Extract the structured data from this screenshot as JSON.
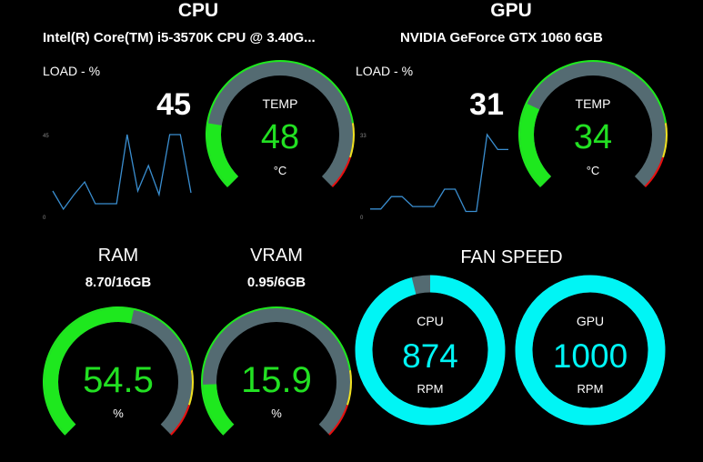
{
  "cpu": {
    "title": "CPU",
    "name": "Intel(R) Core(TM) i5-3570K CPU @ 3.40G...",
    "load_label": "LOAD - %",
    "load_value": "45",
    "axis_top": "45",
    "axis_bottom": "0",
    "load_history": [
      14,
      4,
      12,
      19,
      7,
      7,
      7,
      45,
      14,
      28,
      12,
      45,
      45,
      13
    ],
    "temp_label": "TEMP",
    "temp_value": "48",
    "temp_unit": "°C",
    "temp_fraction": 0.2
  },
  "gpu": {
    "title": "GPU",
    "name": "NVIDIA GeForce GTX 1060 6GB",
    "load_label": "LOAD - %",
    "load_value": "31",
    "axis_top": "33",
    "axis_bottom": "0",
    "load_history": [
      3,
      3,
      8,
      8,
      4,
      4,
      4,
      11,
      11,
      2,
      2,
      33,
      27,
      27
    ],
    "temp_label": "TEMP",
    "temp_value": "34",
    "temp_unit": "°C",
    "temp_fraction": 0.26
  },
  "ram": {
    "title": "RAM",
    "usage": "8.70/16GB",
    "value": "54.5",
    "unit": "%",
    "fraction": 0.545
  },
  "vram": {
    "title": "VRAM",
    "usage": "0.95/6GB",
    "value": "15.9",
    "unit": "%",
    "fraction": 0.159
  },
  "fan": {
    "title": "FAN SPEED",
    "cpu_label": "CPU",
    "cpu_value": "874",
    "cpu_unit": "RPM",
    "cpu_fraction": 0.96,
    "gpu_label": "GPU",
    "gpu_value": "1000",
    "gpu_unit": "RPM",
    "gpu_fraction": 1.0
  },
  "colors": {
    "gauge_fill": "#1ee81e",
    "gauge_track": "#546b72",
    "warn": "#f0e020",
    "danger": "#e81010",
    "fan_ring": "#00f5f5",
    "value_green": "#22e022",
    "value_cyan": "#00f5f5",
    "sparkline": "#3a8ed0"
  }
}
